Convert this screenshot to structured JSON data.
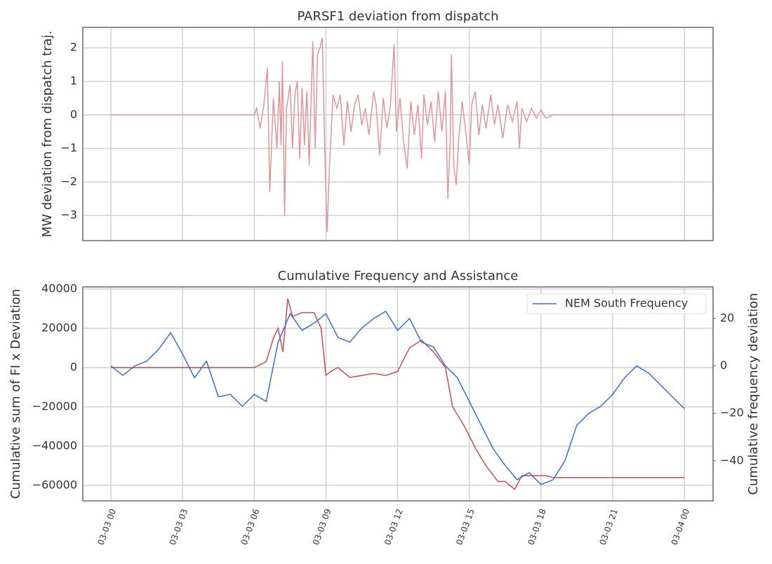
{
  "chart_data": [
    {
      "type": "line",
      "title": "PARSF1 deviation from dispatch",
      "ylabel": "MW deviation from dispatch traj.",
      "xlim": [
        -1.175,
        25.2
      ],
      "xticks": [
        0,
        3,
        6,
        9,
        12,
        15,
        18,
        21,
        24
      ],
      "ylim": [
        -3.75,
        2.61
      ],
      "yticks": [
        {
          "value": -3,
          "label": "−3"
        },
        {
          "value": -2,
          "label": "−2"
        },
        {
          "value": -1,
          "label": "−1"
        },
        0,
        1,
        2
      ],
      "grid": true,
      "series": [
        {
          "color": "#e0959b",
          "x": [
            0,
            6,
            6.1,
            6.25,
            6.4,
            6.55,
            6.65,
            6.8,
            6.95,
            7.05,
            7.12,
            7.18,
            7.27,
            7.35,
            7.5,
            7.6,
            7.7,
            7.8,
            7.9,
            8.0,
            8.1,
            8.2,
            8.3,
            8.4,
            8.45,
            8.55,
            8.65,
            8.75,
            8.85,
            8.95,
            9.05,
            9.15,
            9.3,
            9.45,
            9.6,
            9.75,
            9.9,
            10.05,
            10.2,
            10.35,
            10.5,
            10.65,
            10.8,
            11.0,
            11.1,
            11.25,
            11.4,
            11.55,
            11.7,
            11.85,
            11.95,
            12.1,
            12.25,
            12.4,
            12.55,
            12.7,
            12.85,
            13.0,
            13.1,
            13.25,
            13.4,
            13.55,
            13.7,
            13.85,
            14.0,
            14.1,
            14.2,
            14.25,
            14.35,
            14.45,
            14.55,
            14.7,
            14.85,
            15.0,
            15.1,
            15.25,
            15.4,
            15.55,
            15.7,
            15.9,
            16.05,
            16.2,
            16.4,
            16.6,
            16.8,
            17.0,
            17.1,
            17.2,
            17.4,
            17.6,
            17.8,
            18.0,
            18.2,
            18.5,
            24
          ],
          "values": [
            0,
            0,
            0.2,
            -0.4,
            0.3,
            1.4,
            -2.3,
            0.5,
            -1.0,
            1.0,
            -0.9,
            1.6,
            -3.0,
            0.2,
            0.9,
            -1.0,
            0.6,
            1.0,
            -1.3,
            0.8,
            -0.9,
            0.7,
            -1.5,
            1.0,
            2.2,
            -1.0,
            1.8,
            2.0,
            2.3,
            -1.0,
            -3.5,
            -1.5,
            0.6,
            0.2,
            0.6,
            -0.9,
            0.4,
            -0.5,
            0.3,
            0.6,
            -0.3,
            0.2,
            -0.6,
            0.7,
            0.3,
            -1.2,
            0.5,
            -0.4,
            0.3,
            2.1,
            -0.5,
            0.5,
            -0.8,
            -1.6,
            0.4,
            -0.6,
            0.3,
            -1.3,
            0.6,
            -0.3,
            0.4,
            -0.8,
            0.7,
            -0.5,
            0.7,
            -2.5,
            -0.8,
            1.8,
            -1.5,
            -2.1,
            -0.8,
            0.4,
            -0.5,
            -1.5,
            0.3,
            0.7,
            -0.6,
            0.3,
            -0.4,
            0.6,
            -0.3,
            0.3,
            -0.7,
            0.3,
            -0.2,
            0.4,
            -1.0,
            0.2,
            -0.2,
            0.2,
            -0.1,
            0.15,
            -0.1,
            0,
            0
          ]
        }
      ]
    },
    {
      "type": "line",
      "title": "Cumulative Frequency and Assistance",
      "ylabel": "Cumulative sum of FI x Deviation",
      "y2label": "Cumulative frequency deviation",
      "xlim": [
        -1.175,
        25.2
      ],
      "xticks": [
        {
          "value": 0,
          "label": "03-03 00"
        },
        {
          "value": 3,
          "label": "03-03 03"
        },
        {
          "value": 6,
          "label": "03-03 06"
        },
        {
          "value": 9,
          "label": "03-03 09"
        },
        {
          "value": 12,
          "label": "03-03 12"
        },
        {
          "value": 15,
          "label": "03-03 15"
        },
        {
          "value": 18,
          "label": "03-03 18"
        },
        {
          "value": 21,
          "label": "03-03 21"
        },
        {
          "value": 24,
          "label": "03-04 00"
        }
      ],
      "ylim": [
        -67860,
        41070
      ],
      "yticks": [
        {
          "value": -60000,
          "label": "−60000"
        },
        {
          "value": -40000,
          "label": "−40000"
        },
        {
          "value": -20000,
          "label": "−20000"
        },
        0,
        20000,
        40000
      ],
      "y2lim": [
        -56.9,
        33.3
      ],
      "y2ticks": [
        {
          "value": -40,
          "label": "−40"
        },
        {
          "value": -20,
          "label": "−20"
        },
        0,
        20
      ],
      "grid": true,
      "legend": "upper right",
      "series": [
        {
          "color": "#c44e52",
          "x": [
            0,
            6,
            6.5,
            6.8,
            7.0,
            7.2,
            7.4,
            7.6,
            8.0,
            8.5,
            8.8,
            9.0,
            9.2,
            9.5,
            10.0,
            11.0,
            11.5,
            12.0,
            12.2,
            12.5,
            13.0,
            13.5,
            14.0,
            14.3,
            14.8,
            15.3,
            15.7,
            16.2,
            16.5,
            16.9,
            17.2,
            17.7,
            18.2,
            18.5,
            24
          ],
          "values": [
            0,
            0,
            3000,
            15000,
            20000,
            8000,
            35000,
            26000,
            28000,
            28000,
            20000,
            -4000,
            -2000,
            0,
            -5000,
            -3000,
            -4000,
            -2000,
            3000,
            10000,
            14000,
            8000,
            0,
            -20000,
            -30000,
            -42000,
            -50000,
            -58000,
            -58000,
            -62000,
            -55000,
            -55000,
            -55000,
            -56000,
            -56000
          ]
        },
        {
          "name": "NEM South Frequency",
          "color": "#3b6fc0",
          "axis": "y2",
          "x": [
            0,
            0.5,
            1,
            1.5,
            2,
            2.5,
            3,
            3.5,
            4,
            4.5,
            5,
            5.5,
            6,
            6.5,
            7,
            7.5,
            8,
            8.5,
            9,
            9.5,
            10,
            10.5,
            11,
            11.5,
            12,
            12.5,
            13,
            13.5,
            14,
            14.5,
            15,
            15.5,
            16,
            16.5,
            17,
            17.5,
            18,
            18.5,
            19,
            19.5,
            20,
            20.5,
            21,
            21.5,
            22,
            22.5,
            23,
            23.5,
            24
          ],
          "values": [
            0,
            -4,
            0,
            2,
            7,
            14,
            5,
            -5,
            2,
            -13,
            -12,
            -17,
            -12,
            -15,
            10,
            22,
            15,
            18,
            22,
            12,
            10,
            16,
            20,
            23,
            15,
            20,
            10,
            8,
            0,
            -5,
            -15,
            -25,
            -35,
            -42,
            -48,
            -45,
            -50,
            -48,
            -40,
            -25,
            -20,
            -17,
            -12,
            -5,
            0,
            -3,
            -8,
            -13,
            -18
          ]
        }
      ]
    }
  ]
}
